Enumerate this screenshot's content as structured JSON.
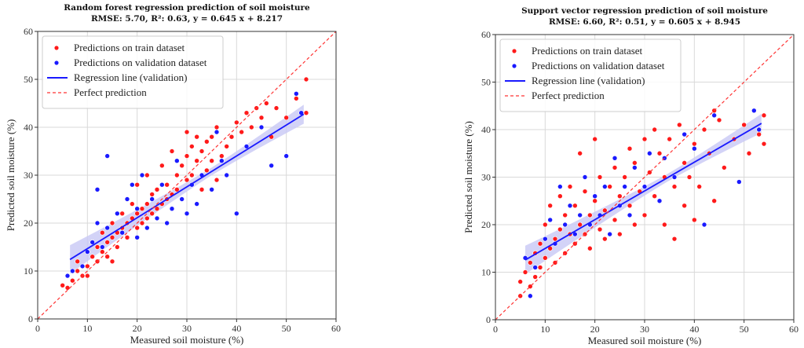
{
  "chart_data": [
    {
      "type": "scatter",
      "title": "Random forest regression prediction of soil moisture",
      "subtitle": "RMSE: 5.70, R²: 0.63, y = 0.645 x + 8.217",
      "xlabel": "Measured soil moisture (%)",
      "ylabel": "Predicted soil moisture (%)",
      "xlim": [
        0,
        60
      ],
      "ylim": [
        0,
        60
      ],
      "xticks": [
        "0",
        "10",
        "20",
        "30",
        "40",
        "50",
        "60"
      ],
      "yticks": [
        "0",
        "10",
        "20",
        "30",
        "40",
        "50",
        "60"
      ],
      "grid": true,
      "legend_position": "top-left",
      "legend": [
        "Predictions on train dataset",
        "Predictions on validation dataset",
        "Regression line (validation)",
        "Perfect prediction"
      ],
      "colors": {
        "train": "#ff1a1a",
        "validation": "#1a1aff",
        "regression": "#1a1aff",
        "perfect": "#ff3333",
        "band": "#c8c8f5"
      },
      "regression": {
        "slope": 0.645,
        "intercept": 8.217,
        "x_range": [
          6.5,
          53.5
        ]
      },
      "series": [
        {
          "name": "Predictions on train dataset",
          "points": [
            [
              5,
              7
            ],
            [
              6,
              6.5
            ],
            [
              7,
              8
            ],
            [
              8,
              10
            ],
            [
              8,
              12
            ],
            [
              9,
              9
            ],
            [
              10,
              11
            ],
            [
              10,
              14
            ],
            [
              11,
              13
            ],
            [
              11,
              16
            ],
            [
              12,
              12
            ],
            [
              12,
              15
            ],
            [
              13,
              14
            ],
            [
              13,
              18
            ],
            [
              14,
              13
            ],
            [
              14,
              16
            ],
            [
              15,
              17
            ],
            [
              15,
              20
            ],
            [
              16,
              15
            ],
            [
              16,
              18
            ],
            [
              17,
              19
            ],
            [
              17,
              22
            ],
            [
              18,
              17
            ],
            [
              18,
              20
            ],
            [
              19,
              21
            ],
            [
              19,
              24
            ],
            [
              20,
              19
            ],
            [
              20,
              22
            ],
            [
              21,
              23
            ],
            [
              21,
              20
            ],
            [
              22,
              24
            ],
            [
              22,
              21
            ],
            [
              23,
              22
            ],
            [
              23,
              26
            ],
            [
              24,
              23
            ],
            [
              24,
              27
            ],
            [
              25,
              24
            ],
            [
              26,
              28
            ],
            [
              26,
              25
            ],
            [
              27,
              26
            ],
            [
              28,
              30
            ],
            [
              28,
              27
            ],
            [
              29,
              32
            ],
            [
              30,
              29
            ],
            [
              30,
              34
            ],
            [
              31,
              36
            ],
            [
              31,
              30
            ],
            [
              32,
              33
            ],
            [
              32,
              38
            ],
            [
              33,
              35
            ],
            [
              34,
              31
            ],
            [
              34,
              37
            ],
            [
              35,
              38
            ],
            [
              35,
              33
            ],
            [
              36,
              40
            ],
            [
              37,
              34
            ],
            [
              38,
              36
            ],
            [
              39,
              38
            ],
            [
              40,
              41
            ],
            [
              41,
              39
            ],
            [
              42,
              43
            ],
            [
              43,
              40
            ],
            [
              44,
              44
            ],
            [
              45,
              42
            ],
            [
              46,
              45
            ],
            [
              47,
              38
            ],
            [
              48,
              44
            ],
            [
              50,
              42
            ],
            [
              52,
              46
            ],
            [
              54,
              50
            ],
            [
              54,
              43
            ],
            [
              20,
              28
            ],
            [
              25,
              32
            ],
            [
              30,
              39
            ],
            [
              33,
              27
            ],
            [
              27,
              35
            ],
            [
              15,
              12
            ],
            [
              10,
              9
            ],
            [
              22,
              30
            ],
            [
              36,
              29
            ]
          ]
        },
        {
          "name": "Predictions on validation dataset",
          "points": [
            [
              6,
              9
            ],
            [
              7,
              10
            ],
            [
              9,
              11
            ],
            [
              10,
              14
            ],
            [
              11,
              16
            ],
            [
              12,
              20
            ],
            [
              12,
              27
            ],
            [
              13,
              15
            ],
            [
              14,
              19
            ],
            [
              14,
              34
            ],
            [
              16,
              22
            ],
            [
              17,
              18
            ],
            [
              18,
              25
            ],
            [
              19,
              28
            ],
            [
              20,
              23
            ],
            [
              20,
              17
            ],
            [
              21,
              30
            ],
            [
              22,
              19
            ],
            [
              23,
              25
            ],
            [
              24,
              21
            ],
            [
              25,
              28
            ],
            [
              26,
              20
            ],
            [
              27,
              23
            ],
            [
              28,
              33
            ],
            [
              29,
              25
            ],
            [
              30,
              22
            ],
            [
              31,
              28
            ],
            [
              32,
              24
            ],
            [
              33,
              30
            ],
            [
              35,
              27
            ],
            [
              36,
              39
            ],
            [
              37,
              33
            ],
            [
              38,
              30
            ],
            [
              40,
              22
            ],
            [
              42,
              36
            ],
            [
              45,
              40
            ],
            [
              47,
              32
            ],
            [
              50,
              34
            ],
            [
              52,
              47
            ],
            [
              53,
              43
            ]
          ]
        }
      ]
    },
    {
      "type": "scatter",
      "title": "Support vector regression prediction of soil moisture",
      "subtitle": "RMSE: 6.60, R²: 0.51, y = 0.605 x + 8.945",
      "xlabel": "Measured soil moisture (%)",
      "ylabel": "Predicted soil moisture (%)",
      "xlim": [
        0,
        60
      ],
      "ylim": [
        0,
        60
      ],
      "xticks": [
        "0",
        "10",
        "20",
        "30",
        "40",
        "50",
        "60"
      ],
      "yticks": [
        "0",
        "10",
        "20",
        "30",
        "40",
        "50",
        "60"
      ],
      "grid": true,
      "legend_position": "top-left",
      "legend": [
        "Predictions on train dataset",
        "Predictions on validation dataset",
        "Regression line (validation)",
        "Perfect prediction"
      ],
      "colors": {
        "train": "#ff1a1a",
        "validation": "#1a1aff",
        "regression": "#1a1aff",
        "perfect": "#ff3333",
        "band": "#c8c8f5"
      },
      "regression": {
        "slope": 0.605,
        "intercept": 8.945,
        "x_range": [
          6,
          53.5
        ]
      },
      "series": [
        {
          "name": "Predictions on train dataset",
          "points": [
            [
              5,
              5
            ],
            [
              5,
              8
            ],
            [
              6,
              10
            ],
            [
              7,
              12
            ],
            [
              7,
              7
            ],
            [
              8,
              14
            ],
            [
              8,
              9
            ],
            [
              9,
              16
            ],
            [
              9,
              11
            ],
            [
              10,
              13
            ],
            [
              10,
              20
            ],
            [
              11,
              15
            ],
            [
              11,
              24
            ],
            [
              12,
              17
            ],
            [
              12,
              12
            ],
            [
              13,
              19
            ],
            [
              13,
              26
            ],
            [
              14,
              14
            ],
            [
              14,
              22
            ],
            [
              15,
              18
            ],
            [
              15,
              28
            ],
            [
              16,
              16
            ],
            [
              16,
              24
            ],
            [
              17,
              20
            ],
            [
              17,
              35
            ],
            [
              18,
              18
            ],
            [
              18,
              27
            ],
            [
              19,
              22
            ],
            [
              19,
              15
            ],
            [
              20,
              25
            ],
            [
              20,
              38
            ],
            [
              21,
              19
            ],
            [
              21,
              30
            ],
            [
              22,
              23
            ],
            [
              22,
              17
            ],
            [
              23,
              28
            ],
            [
              24,
              21
            ],
            [
              24,
              32
            ],
            [
              25,
              26
            ],
            [
              25,
              18
            ],
            [
              26,
              30
            ],
            [
              27,
              24
            ],
            [
              27,
              36
            ],
            [
              28,
              20
            ],
            [
              28,
              33
            ],
            [
              29,
              27
            ],
            [
              30,
              22
            ],
            [
              30,
              38
            ],
            [
              31,
              31
            ],
            [
              32,
              26
            ],
            [
              32,
              40
            ],
            [
              33,
              35
            ],
            [
              34,
              20
            ],
            [
              34,
              30
            ],
            [
              35,
              38
            ],
            [
              36,
              28
            ],
            [
              36,
              17
            ],
            [
              37,
              41
            ],
            [
              38,
              33
            ],
            [
              38,
              24
            ],
            [
              39,
              30
            ],
            [
              40,
              37
            ],
            [
              40,
              21
            ],
            [
              41,
              28
            ],
            [
              42,
              40
            ],
            [
              43,
              35
            ],
            [
              44,
              44
            ],
            [
              44,
              25
            ],
            [
              45,
              42
            ],
            [
              46,
              32
            ],
            [
              48,
              38
            ],
            [
              50,
              41
            ],
            [
              51,
              35
            ],
            [
              53,
              39
            ],
            [
              54,
              43
            ],
            [
              54,
              37
            ]
          ]
        },
        {
          "name": "Predictions on validation dataset",
          "points": [
            [
              6,
              13
            ],
            [
              7,
              5
            ],
            [
              8,
              11
            ],
            [
              10,
              17
            ],
            [
              11,
              21
            ],
            [
              12,
              16
            ],
            [
              13,
              28
            ],
            [
              14,
              20
            ],
            [
              15,
              24
            ],
            [
              16,
              18
            ],
            [
              17,
              22
            ],
            [
              18,
              30
            ],
            [
              19,
              20
            ],
            [
              20,
              26
            ],
            [
              21,
              22
            ],
            [
              22,
              28
            ],
            [
              23,
              18
            ],
            [
              24,
              34
            ],
            [
              25,
              24
            ],
            [
              26,
              28
            ],
            [
              27,
              22
            ],
            [
              28,
              32
            ],
            [
              30,
              28
            ],
            [
              31,
              35
            ],
            [
              33,
              25
            ],
            [
              34,
              34
            ],
            [
              36,
              30
            ],
            [
              38,
              39
            ],
            [
              40,
              36
            ],
            [
              42,
              20
            ],
            [
              44,
              43
            ],
            [
              49,
              29
            ],
            [
              52,
              44
            ],
            [
              53,
              40
            ]
          ]
        }
      ]
    }
  ]
}
